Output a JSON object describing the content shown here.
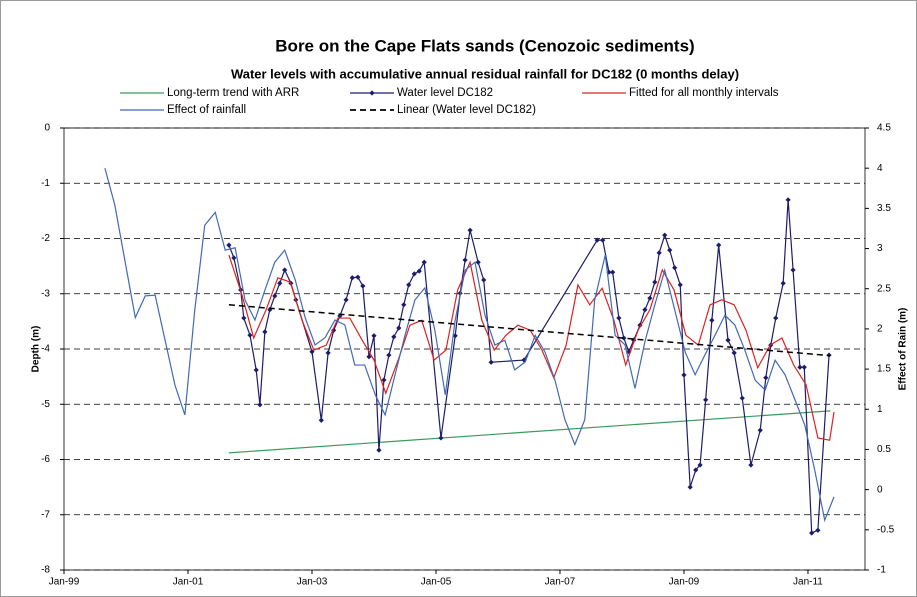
{
  "chart_data": {
    "type": "line",
    "title": "Bore on the Cape Flats sands (Cenozoic sediments)",
    "subtitle": "Water levels with accumulative annual residual rainfall for DC182 (0 months delay)",
    "y_label": "Depth (m)",
    "y2_label": "Effect of Rain (m)",
    "xlim": [
      1999,
      2011.92
    ],
    "ylim": [
      -8,
      0
    ],
    "y2lim": [
      -1,
      4.5
    ],
    "xticks": [
      {
        "value": 1999,
        "label": "Jan-99"
      },
      {
        "value": 2001,
        "label": "Jan-01"
      },
      {
        "value": 2003,
        "label": "Jan-03"
      },
      {
        "value": 2005,
        "label": "Jan-05"
      },
      {
        "value": 2007,
        "label": "Jan-07"
      },
      {
        "value": 2009,
        "label": "Jan-09"
      },
      {
        "value": 2011,
        "label": "Jan-11"
      }
    ],
    "yticks": [
      0,
      -1,
      -2,
      -3,
      -4,
      -5,
      -6,
      -7,
      -8
    ],
    "y2ticks": [
      4.5,
      4,
      3.5,
      3,
      2.5,
      2,
      1.5,
      1,
      0.5,
      0,
      -0.5,
      -1
    ],
    "grid": true,
    "series": [
      {
        "name": "Long-term trend with ARR",
        "color": "#3a9a5c",
        "x": [
          2001.66,
          2011.36
        ],
        "values": [
          -5.88,
          -5.12
        ]
      },
      {
        "name": "Water level DC182",
        "color": "#1c1c6b",
        "marker": "diamond",
        "x": [
          2001.66,
          2001.74,
          2001.85,
          2001.9,
          2002.0,
          2002.1,
          2002.16,
          2002.24,
          2002.32,
          2002.4,
          2002.48,
          2002.56,
          2002.66,
          2002.74,
          2003.0,
          2003.15,
          2003.26,
          2003.35,
          2003.45,
          2003.55,
          2003.65,
          2003.74,
          2003.82,
          2003.92,
          2004.0,
          2004.08,
          2004.16,
          2004.24,
          2004.32,
          2004.4,
          2004.48,
          2004.56,
          2004.65,
          2004.73,
          2004.81,
          2005.08,
          2005.31,
          2005.39,
          2005.47,
          2005.55,
          2005.68,
          2005.77,
          2005.89,
          2006.42,
          2007.6,
          2007.69,
          2007.79,
          2007.85,
          2007.95,
          2008.03,
          2008.11,
          2008.19,
          2008.29,
          2008.37,
          2008.45,
          2008.53,
          2008.6,
          2008.69,
          2008.77,
          2008.85,
          2008.94,
          2009.0,
          2009.1,
          2009.19,
          2009.26,
          2009.35,
          2009.45,
          2009.56,
          2009.71,
          2009.81,
          2009.94,
          2010.08,
          2010.23,
          2010.32,
          2010.4,
          2010.48,
          2010.6,
          2010.68,
          2010.76,
          2010.87,
          2010.94,
          2011.06,
          2011.16,
          2011.34
        ],
        "values": [
          -2.12,
          -2.35,
          -2.93,
          -3.44,
          -3.75,
          -4.38,
          -5.01,
          -3.69,
          -3.29,
          -3.04,
          -2.81,
          -2.57,
          -2.81,
          -3.11,
          -4.05,
          -5.29,
          -4.07,
          -3.66,
          -3.4,
          -3.11,
          -2.71,
          -2.7,
          -2.86,
          -4.14,
          -3.76,
          -5.83,
          -4.56,
          -4.11,
          -3.78,
          -3.62,
          -3.2,
          -2.84,
          -2.64,
          -2.59,
          -2.43,
          -5.61,
          -3.76,
          -2.99,
          -2.39,
          -1.85,
          -2.43,
          -2.75,
          -4.24,
          -4.2,
          -2.03,
          -2.03,
          -2.61,
          -2.61,
          -3.44,
          -3.8,
          -4.05,
          -3.84,
          -3.57,
          -3.29,
          -3.08,
          -2.79,
          -2.26,
          -1.94,
          -2.21,
          -2.53,
          -2.84,
          -4.47,
          -6.5,
          -6.19,
          -6.1,
          -4.92,
          -3.48,
          -2.12,
          -3.84,
          -4.07,
          -4.89,
          -6.1,
          -5.47,
          -4.52,
          -3.93,
          -3.44,
          -2.81,
          -1.3,
          -2.57,
          -4.33,
          -4.33,
          -7.33,
          -7.28,
          -4.11
        ]
      },
      {
        "name": "Fitted for all monthly intervals",
        "color": "#e02020",
        "x": [
          2001.66,
          2001.87,
          2002.06,
          2002.26,
          2002.45,
          2002.65,
          2002.84,
          2003.03,
          2003.23,
          2003.42,
          2003.61,
          2003.81,
          2004.0,
          2004.19,
          2004.39,
          2004.58,
          2004.77,
          2004.97,
          2005.16,
          2005.35,
          2005.55,
          2005.74,
          2005.94,
          2006.13,
          2006.32,
          2006.52,
          2006.71,
          2006.9,
          2007.1,
          2007.29,
          2007.48,
          2007.68,
          2007.87,
          2008.06,
          2008.26,
          2008.45,
          2008.65,
          2008.84,
          2009.03,
          2009.23,
          2009.42,
          2009.61,
          2009.81,
          2010.0,
          2010.19,
          2010.39,
          2010.58,
          2010.77,
          2010.97,
          2011.16,
          2011.35,
          2011.42
        ],
        "values": [
          -2.3,
          -3.02,
          -3.8,
          -3.29,
          -2.71,
          -2.79,
          -3.48,
          -4.02,
          -3.93,
          -3.44,
          -3.44,
          -3.84,
          -4.2,
          -4.8,
          -4.2,
          -3.57,
          -3.48,
          -4.2,
          -4.02,
          -2.93,
          -2.43,
          -3.48,
          -4.02,
          -3.75,
          -3.57,
          -3.66,
          -4.02,
          -4.52,
          -3.93,
          -2.84,
          -3.2,
          -2.9,
          -3.48,
          -4.29,
          -3.66,
          -3.29,
          -2.57,
          -2.93,
          -3.75,
          -3.93,
          -3.2,
          -3.11,
          -3.2,
          -3.66,
          -4.34,
          -3.93,
          -3.8,
          -4.29,
          -4.65,
          -5.61,
          -5.65,
          -5.14
        ]
      },
      {
        "name": "Effect of rainfall",
        "color": "#4169b8",
        "axis": "y2",
        "x": [
          1999.66,
          1999.82,
          1999.98,
          2000.15,
          2000.31,
          2000.47,
          2000.63,
          2000.79,
          2000.95,
          2001.11,
          2001.27,
          2001.44,
          2001.6,
          2001.76,
          2001.92,
          2002.08,
          2002.24,
          2002.4,
          2002.56,
          2002.73,
          2002.89,
          2003.05,
          2003.21,
          2003.37,
          2003.53,
          2003.69,
          2003.85,
          2004.02,
          2004.18,
          2004.34,
          2004.5,
          2004.66,
          2004.82,
          2004.98,
          2005.15,
          2005.31,
          2005.47,
          2005.63,
          2005.79,
          2005.95,
          2006.11,
          2006.27,
          2006.44,
          2006.6,
          2006.76,
          2006.92,
          2007.08,
          2007.24,
          2007.4,
          2007.56,
          2007.73,
          2007.89,
          2008.05,
          2008.21,
          2008.37,
          2008.53,
          2008.69,
          2008.85,
          2009.02,
          2009.18,
          2009.34,
          2009.5,
          2009.66,
          2009.82,
          2009.98,
          2010.15,
          2010.31,
          2010.47,
          2010.63,
          2010.79,
          2010.95,
          2011.11,
          2011.27,
          2011.42
        ],
        "values": [
          4.0,
          3.54,
          2.86,
          2.14,
          2.41,
          2.42,
          1.86,
          1.3,
          0.93,
          2.24,
          3.29,
          3.45,
          2.98,
          3.01,
          2.36,
          2.11,
          2.48,
          2.83,
          2.98,
          2.61,
          2.14,
          1.8,
          1.89,
          2.11,
          2.05,
          1.55,
          1.55,
          1.18,
          0.93,
          1.43,
          1.92,
          2.36,
          2.51,
          1.99,
          1.18,
          2.11,
          2.73,
          2.83,
          2.17,
          1.8,
          1.86,
          1.49,
          1.59,
          1.92,
          1.71,
          1.36,
          0.87,
          0.56,
          0.87,
          2.36,
          2.92,
          1.92,
          1.8,
          1.26,
          1.84,
          2.3,
          2.73,
          2.24,
          1.71,
          1.43,
          1.68,
          1.92,
          2.17,
          2.05,
          1.74,
          1.36,
          1.24,
          1.61,
          1.43,
          1.12,
          0.8,
          0.24,
          -0.38,
          -0.09
        ]
      },
      {
        "name": "Linear (Water level DC182)",
        "color": "#000000",
        "dashed": true,
        "x": [
          2001.66,
          2011.36
        ],
        "values": [
          -3.2,
          -4.12
        ]
      }
    ]
  }
}
